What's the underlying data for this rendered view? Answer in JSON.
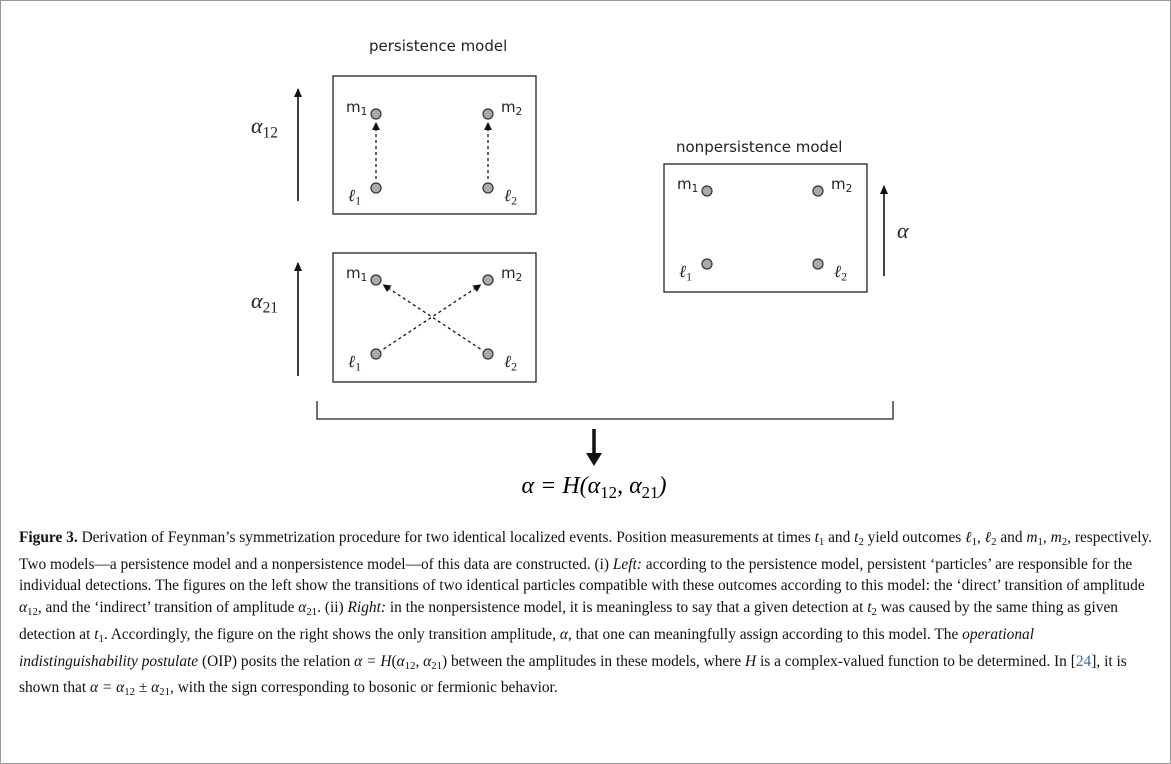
{
  "diagram": {
    "persistence_title": "persistence model",
    "nonpersistence_title": "nonpersistence model",
    "boxes": [
      {
        "nodes": [
          {
            "label": "m",
            "sub": "1"
          },
          {
            "label": "m",
            "sub": "2"
          },
          {
            "label": "ℓ",
            "sub": "1"
          },
          {
            "label": "ℓ",
            "sub": "2"
          }
        ]
      },
      {
        "nodes": [
          {
            "label": "m",
            "sub": "1"
          },
          {
            "label": "m",
            "sub": "2"
          },
          {
            "label": "ℓ",
            "sub": "1"
          },
          {
            "label": "ℓ",
            "sub": "2"
          }
        ]
      },
      {
        "nodes": [
          {
            "label": "m",
            "sub": "1"
          },
          {
            "label": "m",
            "sub": "2"
          },
          {
            "label": "ℓ",
            "sub": "1"
          },
          {
            "label": "ℓ",
            "sub": "2"
          }
        ]
      }
    ],
    "amplitudes": [
      {
        "label": "α",
        "sub": "12"
      },
      {
        "label": "α",
        "sub": "21"
      },
      {
        "label": "α"
      }
    ],
    "result": [
      {
        "t": "α = H("
      },
      {
        "t": "α"
      },
      {
        "t": "12",
        "s": "sub"
      },
      {
        "t": ", α"
      },
      {
        "t": "21",
        "s": "sub"
      },
      {
        "t": ")"
      }
    ]
  },
  "caption": [
    {
      "t": "Figure 3.",
      "s": "b"
    },
    {
      "t": " Derivation of Feynman’s symmetrization procedure for two identical localized events. Position measurements at times "
    },
    {
      "t": "t",
      "s": "i"
    },
    {
      "t": "1",
      "s": "sub"
    },
    {
      "t": " and "
    },
    {
      "t": "t",
      "s": "i"
    },
    {
      "t": "2",
      "s": "sub"
    },
    {
      "t": " yield outcomes "
    },
    {
      "t": "ℓ",
      "s": "i"
    },
    {
      "t": "1",
      "s": "sub"
    },
    {
      "t": ", "
    },
    {
      "t": "ℓ",
      "s": "i"
    },
    {
      "t": "2",
      "s": "sub"
    },
    {
      "t": " and "
    },
    {
      "t": "m",
      "s": "i"
    },
    {
      "t": "1",
      "s": "sub"
    },
    {
      "t": ", "
    },
    {
      "t": "m",
      "s": "i"
    },
    {
      "t": "2",
      "s": "sub"
    },
    {
      "t": ", respectively. Two models—a persistence model and a nonpersistence model—of this data are constructed. (i) "
    },
    {
      "t": "Left:",
      "s": "i"
    },
    {
      "t": " according to the persistence model, persistent ‘particles’ are responsible for the individual detections. The figures on the left show the transitions of two identical particles compatible with these outcomes according to this model: the ‘direct’ transition of amplitude "
    },
    {
      "t": "α",
      "s": "i"
    },
    {
      "t": "12",
      "s": "sub"
    },
    {
      "t": ", and the ‘indirect’ transition of amplitude "
    },
    {
      "t": "α",
      "s": "i"
    },
    {
      "t": "21",
      "s": "sub"
    },
    {
      "t": ". (ii) "
    },
    {
      "t": "Right:",
      "s": "i"
    },
    {
      "t": " in the nonpersistence model, it is meaningless to say that a given detection at "
    },
    {
      "t": "t",
      "s": "i"
    },
    {
      "t": "2",
      "s": "sub"
    },
    {
      "t": " was caused by the same thing as given detection at "
    },
    {
      "t": "t",
      "s": "i"
    },
    {
      "t": "1",
      "s": "sub"
    },
    {
      "t": ". Accordingly, the figure on the right shows the only transition amplitude, "
    },
    {
      "t": "α",
      "s": "i"
    },
    {
      "t": ", that one can meaningfully assign according to this model. The "
    },
    {
      "t": "operational indistinguishability postulate",
      "s": "i"
    },
    {
      "t": " (OIP) posits the relation "
    },
    {
      "t": "α = H",
      "s": "i"
    },
    {
      "t": "("
    },
    {
      "t": "α",
      "s": "i"
    },
    {
      "t": "12",
      "s": "sub"
    },
    {
      "t": ", "
    },
    {
      "t": "α",
      "s": "i"
    },
    {
      "t": "21",
      "s": "sub"
    },
    {
      "t": ") between the amplitudes in these models, where "
    },
    {
      "t": "H",
      "s": "i"
    },
    {
      "t": " is a complex-valued function to be determined. In ["
    },
    {
      "t": "24",
      "s": "link"
    },
    {
      "t": "], it is shown that "
    },
    {
      "t": "α = α",
      "s": "i"
    },
    {
      "t": "12",
      "s": "sub"
    },
    {
      "t": " ± "
    },
    {
      "t": "α",
      "s": "i"
    },
    {
      "t": "21",
      "s": "sub"
    },
    {
      "t": ", with the sign corresponding to bosonic or fermionic behavior."
    }
  ]
}
